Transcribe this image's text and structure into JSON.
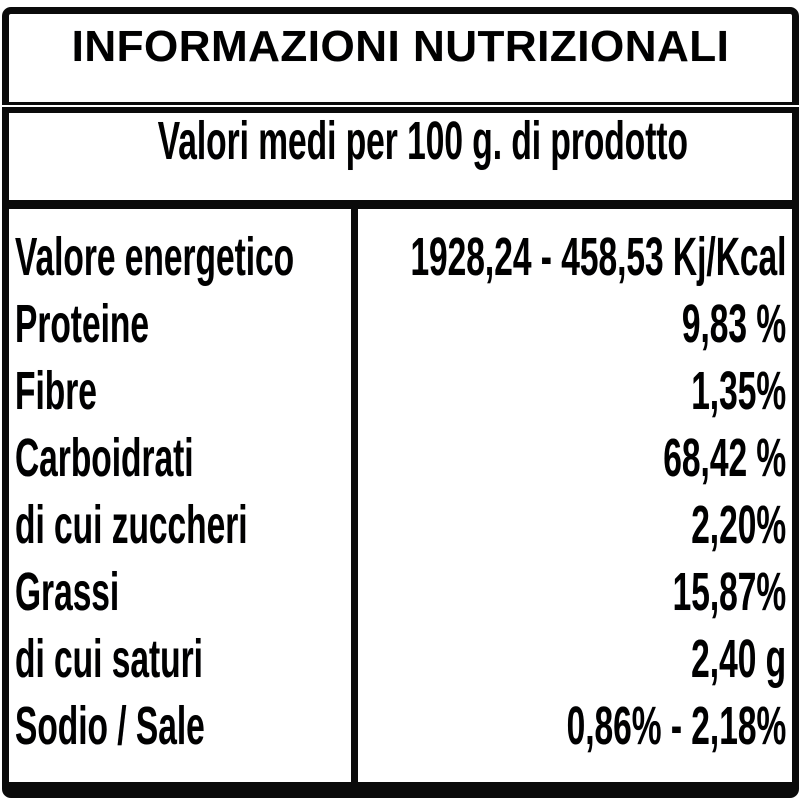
{
  "label": {
    "title": "INFORMAZIONI NUTRIZIONALI",
    "subtitle": "Valori medi per 100 g. di prodotto",
    "rows": [
      {
        "name": "Valore energetico",
        "value": "1928,24 - 458,53 Kj/Kcal"
      },
      {
        "name": "Proteine",
        "value": "9,83 %"
      },
      {
        "name": "Fibre",
        "value": "1,35%"
      },
      {
        "name": "Carboidrati",
        "value": "68,42 %"
      },
      {
        "name": "di cui zuccheri",
        "value": "2,20%"
      },
      {
        "name": "Grassi",
        "value": "15,87%"
      },
      {
        "name": "di cui saturi",
        "value": "2,40 g"
      },
      {
        "name": "Sodio / Sale",
        "value": "0,86% - 2,18%"
      }
    ],
    "colors": {
      "border": "#0a0a0a",
      "text": "#000000",
      "background": "#ffffff"
    }
  }
}
